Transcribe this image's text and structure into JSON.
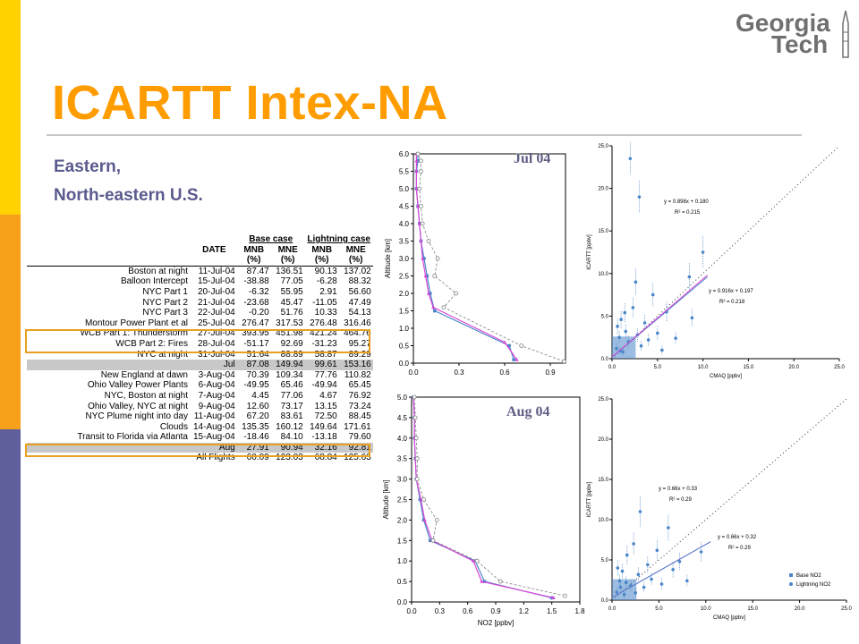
{
  "colors": {
    "accent_orange": "#ff9c00",
    "subtitle_blue": "#5a5a8e",
    "base_case": "#4a86c8",
    "lightning_case": "#d846d8",
    "observed": "#808080",
    "left_bar": [
      "#ffd200",
      "#f7a01a",
      "#5f5f9c"
    ]
  },
  "logo": {
    "line1": "Georgia",
    "line2": "Tech"
  },
  "slide": {
    "title": "ICARTT Intex-NA",
    "subtitle_line1": "Eastern,",
    "subtitle_line2": "North-eastern U.S."
  },
  "table": {
    "group_headers": [
      "Base case",
      "Lightning case"
    ],
    "columns": [
      "DATE",
      "MNB",
      "MNE",
      "MNB",
      "MNE"
    ],
    "units": [
      "(%)",
      "(%)",
      "(%)",
      "(%)"
    ],
    "rows": [
      {
        "label": "Boston at night",
        "date": "11-Jul-04",
        "v": [
          "87.47",
          "136.51",
          "90.13",
          "137.02"
        ],
        "kind": "normal"
      },
      {
        "label": "Balloon Intercept",
        "date": "15-Jul-04",
        "v": [
          "-38.88",
          "77.05",
          "-6.28",
          "88.32"
        ],
        "kind": "normal"
      },
      {
        "label": "NYC Part 1",
        "date": "20-Jul-04",
        "v": [
          "-6.32",
          "55.95",
          "2.91",
          "56.60"
        ],
        "kind": "normal"
      },
      {
        "label": "NYC Part 2",
        "date": "21-Jul-04",
        "v": [
          "-23.68",
          "45.47",
          "-11.05",
          "47.49"
        ],
        "kind": "normal"
      },
      {
        "label": "NYC Part 3",
        "date": "22-Jul-04",
        "v": [
          "-0.20",
          "51.76",
          "10.33",
          "54.13"
        ],
        "kind": "normal"
      },
      {
        "label": "Montour Power Plant et al",
        "date": "25-Jul-04",
        "v": [
          "276.47",
          "317.53",
          "276.48",
          "316.46"
        ],
        "kind": "normal"
      },
      {
        "label": "WCB Part 1: Thunderstorm",
        "date": "27-Jul-04",
        "v": [
          "393.95",
          "451.98",
          "421.24",
          "464.76"
        ],
        "kind": "normal"
      },
      {
        "label": "WCB Part 2: Fires",
        "date": "28-Jul-04",
        "v": [
          "-51.17",
          "92.69",
          "-31.23",
          "95.27"
        ],
        "kind": "normal"
      },
      {
        "label": "NYC at night",
        "date": "31-Jul-04",
        "v": [
          "51.64",
          "88.89",
          "58.87",
          "89.29"
        ],
        "kind": "normal"
      },
      {
        "label": "",
        "date": "Jul",
        "v": [
          "87.08",
          "149.94",
          "99.61",
          "153.16"
        ],
        "kind": "grey"
      },
      {
        "label": "New England at dawn",
        "date": "3-Aug-04",
        "v": [
          "70.39",
          "109.34",
          "77.76",
          "110.82"
        ],
        "kind": "normal"
      },
      {
        "label": "Ohio Valley Power Plants",
        "date": "6-Aug-04",
        "v": [
          "-49.95",
          "65.46",
          "-49.94",
          "65.45"
        ],
        "kind": "normal"
      },
      {
        "label": "NYC, Boston at night",
        "date": "7-Aug-04",
        "v": [
          "4.45",
          "77.06",
          "4.67",
          "76.92"
        ],
        "kind": "normal"
      },
      {
        "label": "Ohio Valley, NYC at night",
        "date": "9-Aug-04",
        "v": [
          "12.60",
          "73.17",
          "13.15",
          "73.24"
        ],
        "kind": "normal"
      },
      {
        "label": "NYC Plume night into day",
        "date": "11-Aug-04",
        "v": [
          "67.20",
          "83.61",
          "72.50",
          "88.45"
        ],
        "kind": "normal"
      },
      {
        "label": "Clouds",
        "date": "14-Aug-04",
        "v": [
          "135.35",
          "160.12",
          "149.64",
          "171.61"
        ],
        "kind": "normal"
      },
      {
        "label": "Transit to Florida via Atlanta",
        "date": "15-Aug-04",
        "v": [
          "-18.46",
          "84.10",
          "-13.18",
          "79.60"
        ],
        "kind": "normal"
      },
      {
        "label": "",
        "date": "Aug",
        "v": [
          "27.91",
          "90.94",
          "32.16",
          "92.81"
        ],
        "kind": "grey"
      },
      {
        "label": "",
        "date": "All Flights",
        "v": [
          "60.09",
          "123.03",
          "68.84",
          "125.63"
        ],
        "kind": "normal"
      }
    ]
  },
  "chart_data": [
    {
      "type": "line",
      "panel": "Jul 04",
      "title": "",
      "xlabel": "",
      "ylabel": "Altitude [km]",
      "xlim": [
        0,
        1.0
      ],
      "ylim": [
        0,
        6.0
      ],
      "xticks": [
        "0.0",
        "0.3",
        "0.6",
        "0.9"
      ],
      "yticks": [
        "0.0",
        "0.5",
        "1.0",
        "1.5",
        "2.0",
        "2.5",
        "3.0",
        "3.5",
        "4.0",
        "4.5",
        "5.0",
        "5.5",
        "6.0"
      ],
      "series": [
        {
          "name": "",
          "role": "base",
          "x": [
            0.66,
            0.63,
            0.14,
            0.11,
            0.09,
            0.07,
            0.05,
            0.04,
            0.03,
            0.02,
            0.02,
            0.03,
            0.03
          ],
          "y": [
            0.1,
            0.5,
            1.5,
            2.0,
            2.5,
            3.0,
            3.5,
            4.0,
            4.5,
            5.0,
            5.5,
            5.8,
            6.0
          ]
        },
        {
          "name": "",
          "role": "lightning",
          "x": [
            0.68,
            0.6,
            0.13,
            0.1,
            0.08,
            0.06,
            0.05,
            0.04,
            0.03,
            0.02,
            0.02,
            0.02,
            0.02
          ],
          "y": [
            0.1,
            0.6,
            1.6,
            2.0,
            2.5,
            3.0,
            3.5,
            4.0,
            4.5,
            5.0,
            5.5,
            5.8,
            6.0
          ]
        },
        {
          "name": "",
          "role": "observed",
          "x": [
            0.99,
            0.71,
            0.2,
            0.28,
            0.14,
            0.16,
            0.1,
            0.06,
            0.05,
            0.04,
            0.05,
            0.05,
            0.03
          ],
          "y": [
            0.05,
            0.5,
            1.6,
            2.0,
            2.5,
            3.0,
            3.5,
            4.0,
            4.5,
            5.0,
            5.5,
            5.8,
            6.0
          ]
        }
      ]
    },
    {
      "type": "scatter",
      "panel": "Jul 04",
      "xlabel": "CMAQ [ppbv]",
      "ylabel": "ICARTT [ppbv]",
      "xlim": [
        0,
        25
      ],
      "ylim": [
        0,
        25
      ],
      "xticks": [
        "0.0",
        "5.0",
        "10.0",
        "15.0",
        "20.0",
        "25.0"
      ],
      "yticks": [
        "0.0",
        "5.0",
        "10.0",
        "15.0",
        "20.0",
        "25.0"
      ],
      "fits": [
        {
          "name": "",
          "role": "base",
          "equation": "y = 0.898x + 0.180",
          "r2": "R² = 0.215",
          "slope": 0.898,
          "intercept": 0.18
        },
        {
          "name": "",
          "role": "lightning",
          "equation": "y = 0.916x + 0.197",
          "r2": "R² = 0.218",
          "slope": 0.916,
          "intercept": 0.197
        }
      ],
      "points": [
        [
          0.5,
          1.2
        ],
        [
          0.8,
          2.5
        ],
        [
          1.0,
          4.6
        ],
        [
          1.2,
          0.8
        ],
        [
          1.5,
          3.2
        ],
        [
          1.8,
          2.0
        ],
        [
          2.0,
          23.5
        ],
        [
          2.3,
          6.0
        ],
        [
          2.6,
          9.0
        ],
        [
          3.0,
          19.0
        ],
        [
          3.2,
          1.5
        ],
        [
          3.6,
          4.2
        ],
        [
          4.0,
          2.2
        ],
        [
          4.5,
          7.5
        ],
        [
          5.0,
          3.0
        ],
        [
          5.5,
          1.0
        ],
        [
          6.0,
          5.5
        ],
        [
          7.0,
          2.4
        ],
        [
          8.5,
          9.6
        ],
        [
          8.8,
          4.8
        ],
        [
          10.0,
          12.5
        ],
        [
          1.4,
          5.4
        ],
        [
          0.6,
          3.8
        ],
        [
          2.8,
          2.8
        ],
        [
          0.9,
          0.9
        ]
      ]
    },
    {
      "type": "line",
      "panel": "Aug 04",
      "xlabel": "NO2 [ppbv]",
      "ylabel": "Altitude [km]",
      "xlim": [
        0,
        1.8
      ],
      "ylim": [
        0,
        5.0
      ],
      "xticks": [
        "0.0",
        "0.3",
        "0.6",
        "0.9",
        "1.2",
        "1.5",
        "1.8"
      ],
      "yticks": [
        "0.0",
        "0.5",
        "1.0",
        "1.5",
        "2.0",
        "2.5",
        "3.0",
        "3.5",
        "4.0",
        "4.5",
        "5.0"
      ],
      "series": [
        {
          "name": "",
          "role": "base",
          "x": [
            1.5,
            0.78,
            0.68,
            0.2,
            0.13,
            0.09,
            0.05,
            0.04,
            0.03,
            0.03,
            0.02
          ],
          "y": [
            0.1,
            0.5,
            1.0,
            1.5,
            2.0,
            2.5,
            3.0,
            3.5,
            4.0,
            4.5,
            5.0
          ]
        },
        {
          "name": "",
          "role": "lightning",
          "x": [
            1.52,
            0.75,
            0.66,
            0.22,
            0.14,
            0.1,
            0.05,
            0.04,
            0.03,
            0.03,
            0.02
          ],
          "y": [
            0.1,
            0.5,
            1.0,
            1.5,
            2.0,
            2.5,
            3.0,
            3.5,
            4.0,
            4.5,
            5.0
          ]
        },
        {
          "name": "",
          "role": "observed",
          "x": [
            1.64,
            0.95,
            0.7,
            0.23,
            0.27,
            0.13,
            0.06,
            0.06,
            0.05,
            0.04,
            0.03
          ],
          "y": [
            0.15,
            0.5,
            1.0,
            1.5,
            2.0,
            2.5,
            3.0,
            3.5,
            4.0,
            4.5,
            5.0
          ]
        }
      ]
    },
    {
      "type": "scatter",
      "panel": "Aug 04",
      "xlabel": "CMAQ [ppbv]",
      "ylabel": "ICARTT [ppbv]",
      "xlim": [
        0,
        25
      ],
      "ylim": [
        0,
        25
      ],
      "xticks": [
        "0.0",
        "5.0",
        "10.0",
        "15.0",
        "20.0",
        "25.0"
      ],
      "yticks": [
        "0.0",
        "5.0",
        "10.0",
        "15.0",
        "20.0",
        "25.0"
      ],
      "legend": {
        "placement": "bottom-right",
        "entries": [
          "Base NO2",
          "Lightning NO2"
        ]
      },
      "fits": [
        {
          "name": "",
          "role": "lightning",
          "equation": "y = 0.66x + 0.33",
          "r2": "R² = 0.29",
          "slope": 0.66,
          "intercept": 0.33
        },
        {
          "name": "",
          "role": "base",
          "equation": "y = 0.66x + 0.32",
          "r2": "R² = 0.29",
          "slope": 0.66,
          "intercept": 0.32
        }
      ],
      "points": [
        [
          0.5,
          1.0
        ],
        [
          0.8,
          2.4
        ],
        [
          1.1,
          3.6
        ],
        [
          1.3,
          0.7
        ],
        [
          1.6,
          5.6
        ],
        [
          2.0,
          1.8
        ],
        [
          2.3,
          7.0
        ],
        [
          2.8,
          3.2
        ],
        [
          3.0,
          11.0
        ],
        [
          3.4,
          1.6
        ],
        [
          3.8,
          4.4
        ],
        [
          4.2,
          2.6
        ],
        [
          4.8,
          6.2
        ],
        [
          5.3,
          2.0
        ],
        [
          6.0,
          9.0
        ],
        [
          6.5,
          3.8
        ],
        [
          7.2,
          4.8
        ],
        [
          8.0,
          2.4
        ],
        [
          9.5,
          6.0
        ],
        [
          0.6,
          4.0
        ],
        [
          1.5,
          2.2
        ],
        [
          2.5,
          0.9
        ],
        [
          0.9,
          1.6
        ]
      ]
    }
  ]
}
